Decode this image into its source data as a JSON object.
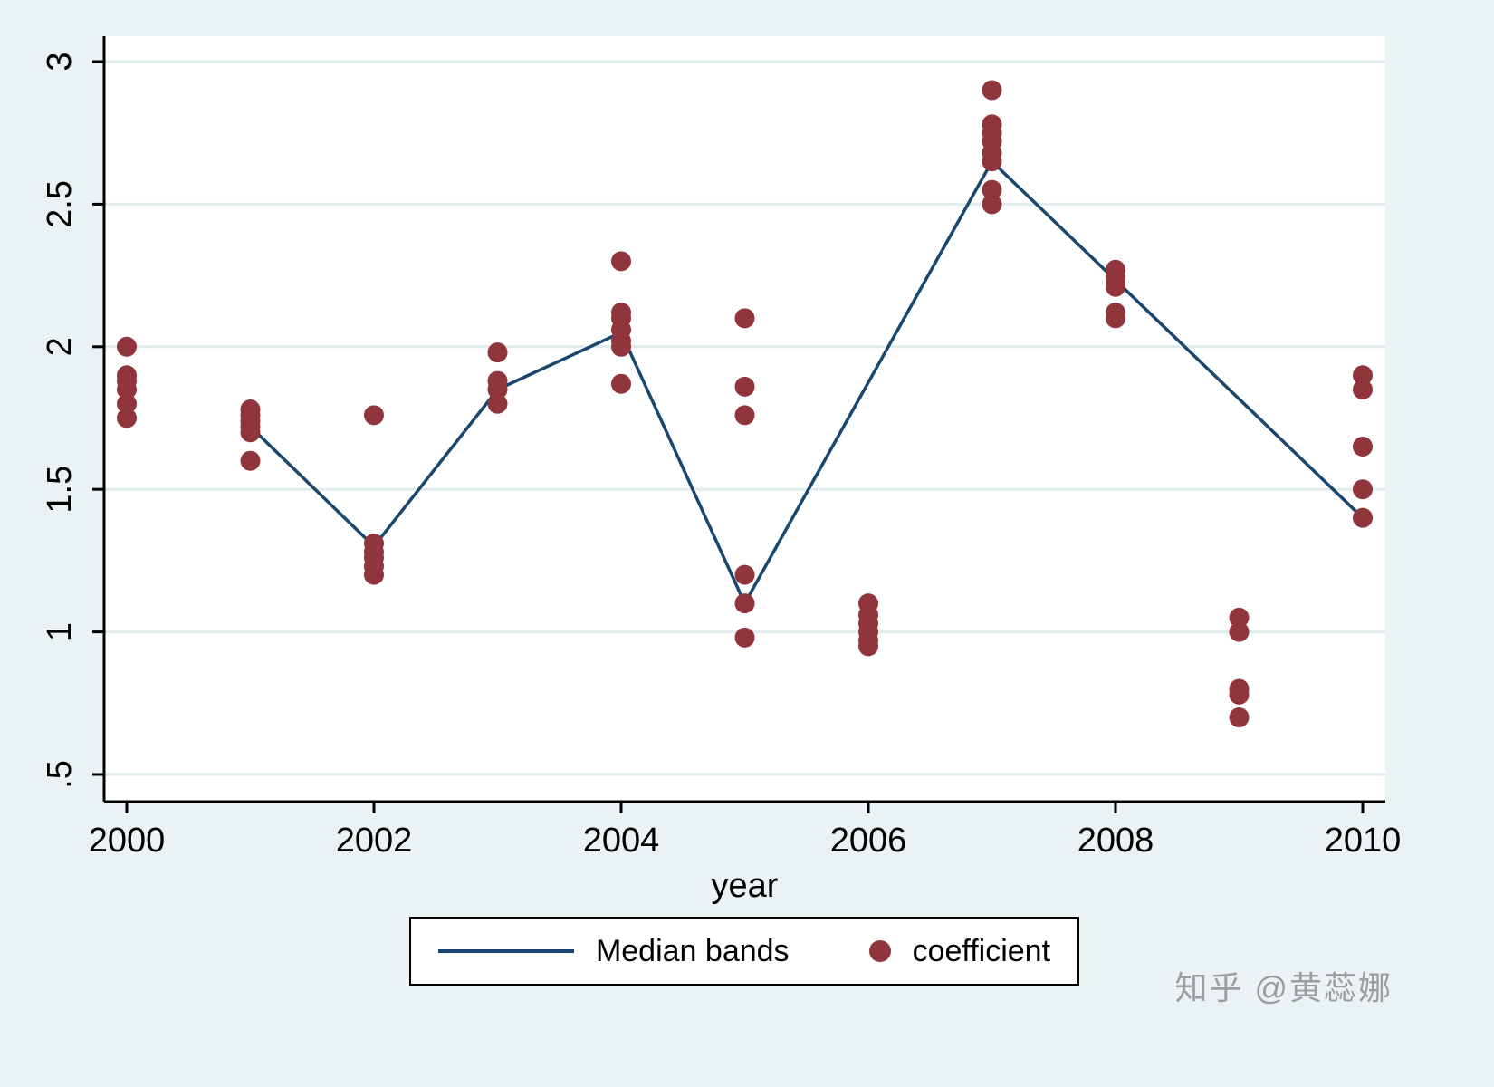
{
  "chart_data": {
    "type": "scatter",
    "title": "",
    "xlabel": "year",
    "ylabel": "",
    "xlim": [
      1999.8,
      2010.2
    ],
    "ylim": [
      0.45,
      3.05
    ],
    "x_ticks": [
      2000,
      2002,
      2004,
      2006,
      2008,
      2010
    ],
    "y_ticks": [
      {
        "value": 0.5,
        "label": ".5"
      },
      {
        "value": 1,
        "label": "1"
      },
      {
        "value": 1.5,
        "label": "1.5"
      },
      {
        "value": 2,
        "label": "2"
      },
      {
        "value": 2.5,
        "label": "2.5"
      },
      {
        "value": 3,
        "label": "3"
      }
    ],
    "grid": true,
    "legend_position": "bottom",
    "series": [
      {
        "name": "Median bands",
        "type": "line",
        "color": "#1a476f",
        "points": [
          [
            2001,
            1.72
          ],
          [
            2002,
            1.3
          ],
          [
            2003,
            1.85
          ],
          [
            2004,
            2.05
          ],
          [
            2005,
            1.1
          ],
          [
            2007,
            2.65
          ],
          [
            2010,
            1.4
          ]
        ]
      },
      {
        "name": "coefficient",
        "type": "scatter",
        "color": "#90353b",
        "points": [
          [
            2000,
            2.0
          ],
          [
            2000,
            1.9
          ],
          [
            2000,
            1.88
          ],
          [
            2000,
            1.85
          ],
          [
            2000,
            1.8
          ],
          [
            2000,
            1.75
          ],
          [
            2001,
            1.78
          ],
          [
            2001,
            1.76
          ],
          [
            2001,
            1.74
          ],
          [
            2001,
            1.72
          ],
          [
            2001,
            1.7
          ],
          [
            2001,
            1.6
          ],
          [
            2002,
            1.76
          ],
          [
            2002,
            1.31
          ],
          [
            2002,
            1.28
          ],
          [
            2002,
            1.26
          ],
          [
            2002,
            1.23
          ],
          [
            2002,
            1.2
          ],
          [
            2003,
            1.98
          ],
          [
            2003,
            1.88
          ],
          [
            2003,
            1.85
          ],
          [
            2003,
            1.8
          ],
          [
            2004,
            2.3
          ],
          [
            2004,
            2.12
          ],
          [
            2004,
            2.1
          ],
          [
            2004,
            2.06
          ],
          [
            2004,
            2.02
          ],
          [
            2004,
            2.0
          ],
          [
            2004,
            1.87
          ],
          [
            2005,
            2.1
          ],
          [
            2005,
            1.86
          ],
          [
            2005,
            1.76
          ],
          [
            2005,
            1.2
          ],
          [
            2005,
            1.1
          ],
          [
            2005,
            0.98
          ],
          [
            2006,
            1.1
          ],
          [
            2006,
            1.06
          ],
          [
            2006,
            1.03
          ],
          [
            2006,
            1.0
          ],
          [
            2006,
            0.97
          ],
          [
            2006,
            0.95
          ],
          [
            2007,
            2.9
          ],
          [
            2007,
            2.78
          ],
          [
            2007,
            2.75
          ],
          [
            2007,
            2.72
          ],
          [
            2007,
            2.68
          ],
          [
            2007,
            2.65
          ],
          [
            2007,
            2.55
          ],
          [
            2007,
            2.5
          ],
          [
            2008,
            2.27
          ],
          [
            2008,
            2.24
          ],
          [
            2008,
            2.21
          ],
          [
            2008,
            2.12
          ],
          [
            2008,
            2.1
          ],
          [
            2009,
            1.05
          ],
          [
            2009,
            1.0
          ],
          [
            2009,
            0.8
          ],
          [
            2009,
            0.78
          ],
          [
            2009,
            0.7
          ],
          [
            2010,
            1.9
          ],
          [
            2010,
            1.85
          ],
          [
            2010,
            1.65
          ],
          [
            2010,
            1.5
          ],
          [
            2010,
            1.4
          ]
        ]
      }
    ]
  },
  "legend": {
    "line_label": "Median bands",
    "marker_label": "coefficient"
  },
  "watermark": {
    "text": "知乎 @黄蕊娜"
  },
  "colors": {
    "background": "#eaf2f3",
    "plot_background": "#ffffff",
    "gridline": "#e2ebee",
    "axis": "#000000",
    "line": "#1a476f",
    "marker": "#90353b",
    "watermark": "#9b9da1"
  }
}
